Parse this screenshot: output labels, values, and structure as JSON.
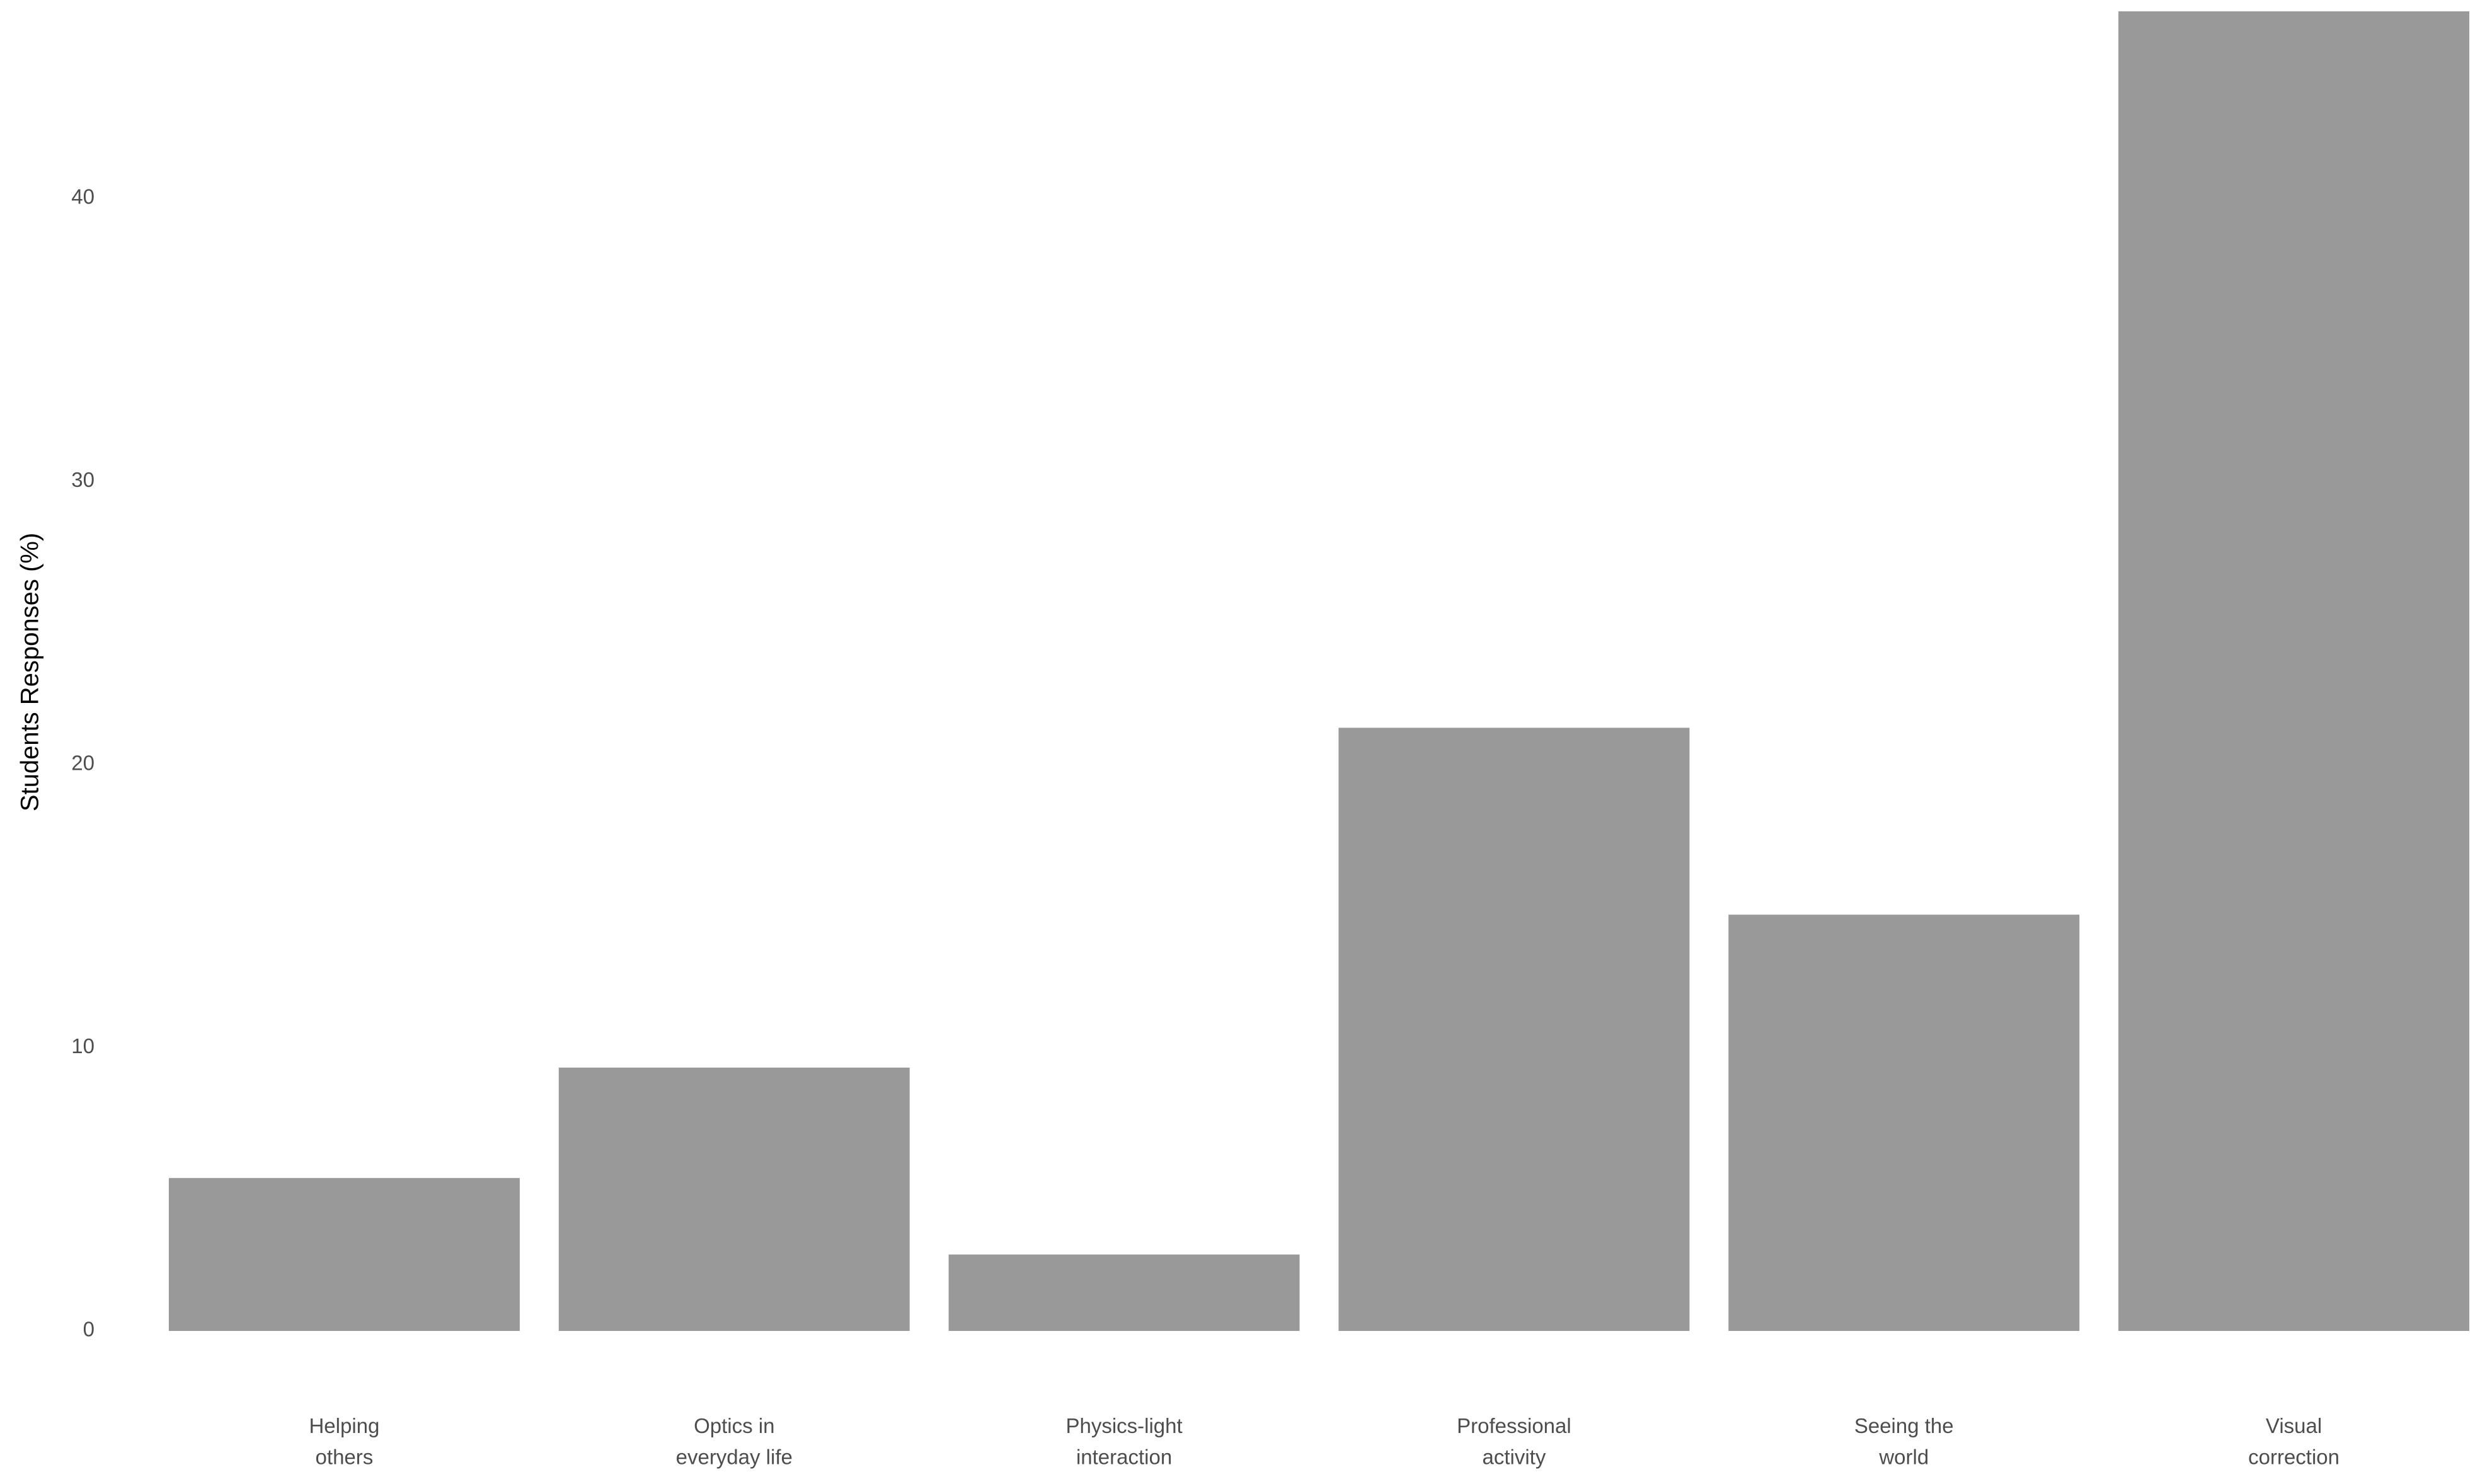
{
  "chart_data": {
    "type": "bar",
    "y_label": "Students Responses (%)",
    "categories": [
      "Helping\nothers",
      "Optics in\neveryday life",
      "Physics-light\ninteraction",
      "Professional\nactivity",
      "Seeing the\nworld",
      "Visual\ncorrection"
    ],
    "values": [
      5.4,
      9.3,
      2.7,
      21.3,
      14.7,
      46.6
    ],
    "color": "#999999",
    "ylim": [
      0,
      46.6
    ],
    "yticks": [
      0,
      10,
      20,
      30,
      40
    ],
    "grid": false
  }
}
